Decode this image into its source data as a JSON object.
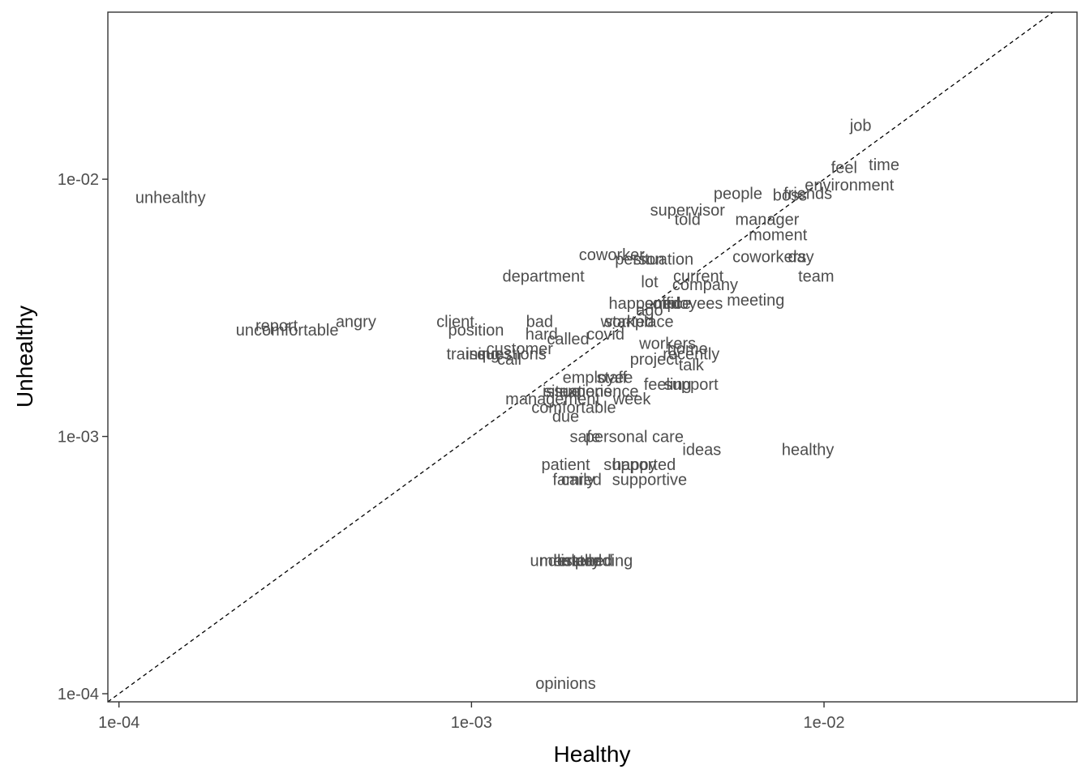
{
  "chart_data": {
    "type": "scatter",
    "title": "",
    "xlabel": "Healthy",
    "ylabel": "Unhealthy",
    "xscale": "log10",
    "yscale": "log10",
    "xlim": [
      9.3e-05,
      0.0522
    ],
    "ylim": [
      9.3e-05,
      0.0446
    ],
    "xticks": [
      {
        "value": 0.0001,
        "label": "1e-04"
      },
      {
        "value": 0.001,
        "label": "1e-03"
      },
      {
        "value": 0.01,
        "label": "1e-02"
      }
    ],
    "yticks": [
      {
        "value": 0.0001,
        "label": "1e-04"
      },
      {
        "value": 0.001,
        "label": "1e-03"
      },
      {
        "value": 0.01,
        "label": "1e-02"
      }
    ],
    "reference_line": "y = x (dashed)",
    "grid": false,
    "legend": "none",
    "colors": {
      "label": "#4d4d4d",
      "frame": "#333333",
      "reference": "#000000"
    },
    "points": [
      {
        "label": "job",
        "x": 0.0127,
        "y": 0.0162
      },
      {
        "label": "time",
        "x": 0.0148,
        "y": 0.0114
      },
      {
        "label": "feel",
        "x": 0.0114,
        "y": 0.0111
      },
      {
        "label": "environment",
        "x": 0.0118,
        "y": 0.0095
      },
      {
        "label": "boss",
        "x": 0.008,
        "y": 0.0087
      },
      {
        "label": "friends",
        "x": 0.009,
        "y": 0.0088
      },
      {
        "label": "people",
        "x": 0.0057,
        "y": 0.0088
      },
      {
        "label": "supervisor",
        "x": 0.0041,
        "y": 0.0076
      },
      {
        "label": "told",
        "x": 0.0041,
        "y": 0.007
      },
      {
        "label": "manager",
        "x": 0.0069,
        "y": 0.007
      },
      {
        "label": "moment",
        "x": 0.0074,
        "y": 0.0061
      },
      {
        "label": "day",
        "x": 0.0086,
        "y": 0.005
      },
      {
        "label": "coworkers",
        "x": 0.007,
        "y": 0.005
      },
      {
        "label": "team",
        "x": 0.0095,
        "y": 0.0042
      },
      {
        "label": "coworker",
        "x": 0.0025,
        "y": 0.0051
      },
      {
        "label": "person",
        "x": 0.003,
        "y": 0.0049
      },
      {
        "label": "situation",
        "x": 0.0035,
        "y": 0.0049
      },
      {
        "label": "current",
        "x": 0.0044,
        "y": 0.0042
      },
      {
        "label": "company",
        "x": 0.0046,
        "y": 0.0039
      },
      {
        "label": "department",
        "x": 0.0016,
        "y": 0.0042
      },
      {
        "label": "lot",
        "x": 0.0032,
        "y": 0.004
      },
      {
        "label": "meeting",
        "x": 0.0064,
        "y": 0.0034
      },
      {
        "label": "happened",
        "x": 0.0031,
        "y": 0.0033
      },
      {
        "label": "office",
        "x": 0.0037,
        "y": 0.0033
      },
      {
        "label": "employees",
        "x": 0.004,
        "y": 0.0033
      },
      {
        "label": "ago",
        "x": 0.0032,
        "y": 0.0031
      },
      {
        "label": "place",
        "x": 0.0033,
        "y": 0.0028
      },
      {
        "label": "work",
        "x": 0.0026,
        "y": 0.0028
      },
      {
        "label": "started",
        "x": 0.0028,
        "y": 0.0028
      },
      {
        "label": "covid",
        "x": 0.0024,
        "y": 0.0025
      },
      {
        "label": "client",
        "x": 0.0009,
        "y": 0.0028
      },
      {
        "label": "position",
        "x": 0.00103,
        "y": 0.0026
      },
      {
        "label": "bad",
        "x": 0.00156,
        "y": 0.0028
      },
      {
        "label": "hard",
        "x": 0.00158,
        "y": 0.0025
      },
      {
        "label": "called",
        "x": 0.00188,
        "y": 0.0024
      },
      {
        "label": "angry",
        "x": 0.00047,
        "y": 0.0028
      },
      {
        "label": "report",
        "x": 0.00028,
        "y": 0.0027
      },
      {
        "label": "uncomfortable",
        "x": 0.0003,
        "y": 0.0026
      },
      {
        "label": "unhealthy",
        "x": 0.00014,
        "y": 0.0085
      },
      {
        "label": "workers",
        "x": 0.0036,
        "y": 0.0023
      },
      {
        "label": "home",
        "x": 0.0041,
        "y": 0.0022
      },
      {
        "label": "recently",
        "x": 0.0042,
        "y": 0.0021
      },
      {
        "label": "project",
        "x": 0.0033,
        "y": 0.002
      },
      {
        "label": "talk",
        "x": 0.0042,
        "y": 0.0019
      },
      {
        "label": "training",
        "x": 0.00101,
        "y": 0.0021
      },
      {
        "label": "issues",
        "x": 0.00112,
        "y": 0.0021
      },
      {
        "label": "customer",
        "x": 0.00137,
        "y": 0.0022
      },
      {
        "label": "questions",
        "x": 0.0013,
        "y": 0.0021
      },
      {
        "label": "call",
        "x": 0.00128,
        "y": 0.002
      },
      {
        "label": "employee",
        "x": 0.00228,
        "y": 0.0017
      },
      {
        "label": "staff",
        "x": 0.0025,
        "y": 0.0017
      },
      {
        "label": "feeling",
        "x": 0.0036,
        "y": 0.0016
      },
      {
        "label": "support",
        "x": 0.0042,
        "y": 0.0016
      },
      {
        "label": "issue",
        "x": 0.0018,
        "y": 0.0015
      },
      {
        "label": "situations",
        "x": 0.002,
        "y": 0.0015
      },
      {
        "label": "experience",
        "x": 0.0023,
        "y": 0.0015
      },
      {
        "label": "week",
        "x": 0.00285,
        "y": 0.0014
      },
      {
        "label": "management",
        "x": 0.0017,
        "y": 0.0014
      },
      {
        "label": "comfortable",
        "x": 0.00195,
        "y": 0.0013
      },
      {
        "label": "due",
        "x": 0.00185,
        "y": 0.0012
      },
      {
        "label": "safe",
        "x": 0.0021,
        "y": 0.001
      },
      {
        "label": "personal care",
        "x": 0.0029,
        "y": 0.001
      },
      {
        "label": "ideas",
        "x": 0.0045,
        "y": 0.00089
      },
      {
        "label": "healthy",
        "x": 0.009,
        "y": 0.00089
      },
      {
        "label": "patient",
        "x": 0.00185,
        "y": 0.00078
      },
      {
        "label": "supported",
        "x": 0.003,
        "y": 0.00078
      },
      {
        "label": "happy",
        "x": 0.0029,
        "y": 0.00078
      },
      {
        "label": "family",
        "x": 0.00195,
        "y": 0.00068
      },
      {
        "label": "cared",
        "x": 0.00205,
        "y": 0.00068
      },
      {
        "label": "supportive",
        "x": 0.0032,
        "y": 0.00068
      },
      {
        "label": "understanding",
        "x": 0.00205,
        "y": 0.00033
      },
      {
        "label": "mentally",
        "x": 0.0019,
        "y": 0.00033
      },
      {
        "label": "helped",
        "x": 0.002,
        "y": 0.00033
      },
      {
        "label": "listened",
        "x": 0.0021,
        "y": 0.00033
      },
      {
        "label": "opinions",
        "x": 0.00185,
        "y": 0.00011
      }
    ]
  }
}
